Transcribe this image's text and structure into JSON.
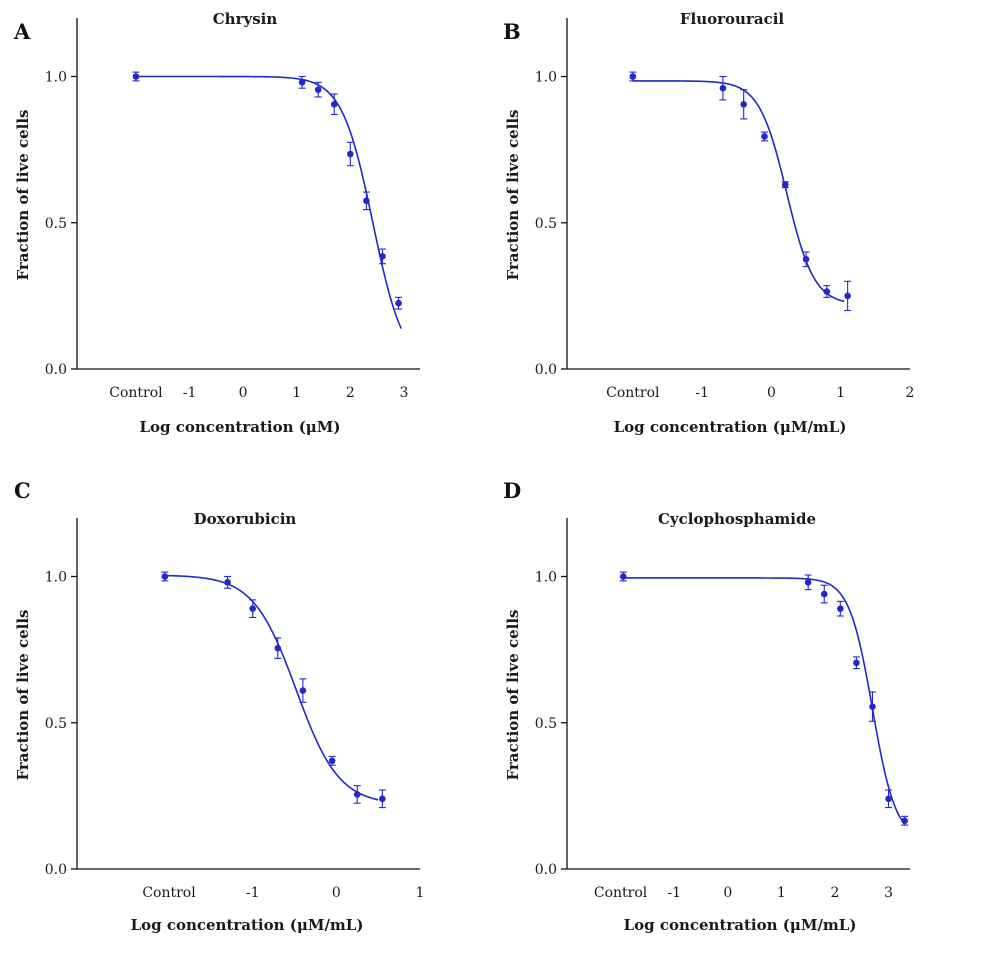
{
  "chart_data": [
    {
      "panel": "A",
      "type": "scatter",
      "title": "Chrysin",
      "xlabel": "Log concentration (μM)",
      "ylabel": "Fraction of live cells",
      "xlim": [
        -3.1,
        3.3
      ],
      "ylim": [
        0,
        1.2
      ],
      "x_ticks": [
        {
          "value": -2,
          "label": "Control"
        },
        {
          "value": -1,
          "label": "-1"
        },
        {
          "value": 0,
          "label": "0"
        },
        {
          "value": 1,
          "label": "1"
        },
        {
          "value": 2,
          "label": "2"
        },
        {
          "value": 3,
          "label": "3"
        }
      ],
      "y_ticks": [
        {
          "value": 0,
          "label": "0.0"
        },
        {
          "value": 0.5,
          "label": "0.5"
        },
        {
          "value": 1,
          "label": "1.0"
        }
      ],
      "fit": {
        "top": 1.0,
        "bottom": 0.0,
        "logIC50": 2.42,
        "hill": 1.5,
        "x_from": -2,
        "x_to": 2.95
      },
      "points": [
        {
          "x": -2,
          "y": 1.0,
          "err": 0.015
        },
        {
          "x": 1.1,
          "y": 0.98,
          "err": 0.02
        },
        {
          "x": 1.4,
          "y": 0.955,
          "err": 0.025
        },
        {
          "x": 1.7,
          "y": 0.905,
          "err": 0.035
        },
        {
          "x": 2.0,
          "y": 0.735,
          "err": 0.04
        },
        {
          "x": 2.3,
          "y": 0.575,
          "err": 0.03
        },
        {
          "x": 2.6,
          "y": 0.385,
          "err": 0.025
        },
        {
          "x": 2.9,
          "y": 0.225,
          "err": 0.02
        }
      ]
    },
    {
      "panel": "B",
      "type": "scatter",
      "title": "Fluorouracil",
      "xlabel": "Log concentration (μM/mL)",
      "ylabel": "Fraction of live cells",
      "xlim": [
        -2.95,
        2.0
      ],
      "ylim": [
        0,
        1.2
      ],
      "x_ticks": [
        {
          "value": -2,
          "label": "Control"
        },
        {
          "value": -1,
          "label": "-1"
        },
        {
          "value": 0,
          "label": "0"
        },
        {
          "value": 1,
          "label": "1"
        },
        {
          "value": 2,
          "label": "2"
        }
      ],
      "y_ticks": [
        {
          "value": 0,
          "label": "0.0"
        },
        {
          "value": 0.5,
          "label": "0.5"
        },
        {
          "value": 1,
          "label": "1.0"
        }
      ],
      "fit": {
        "top": 0.985,
        "bottom": 0.22,
        "logIC50": 0.22,
        "hill": 2.2,
        "x_from": -2,
        "x_to": 1.05
      },
      "points": [
        {
          "x": -2,
          "y": 1.0,
          "err": 0.015
        },
        {
          "x": -0.7,
          "y": 0.96,
          "err": 0.04
        },
        {
          "x": -0.4,
          "y": 0.905,
          "err": 0.05
        },
        {
          "x": -0.1,
          "y": 0.795,
          "err": 0.015
        },
        {
          "x": 0.2,
          "y": 0.63,
          "err": 0.01
        },
        {
          "x": 0.5,
          "y": 0.375,
          "err": 0.025
        },
        {
          "x": 0.8,
          "y": 0.265,
          "err": 0.02
        },
        {
          "x": 1.1,
          "y": 0.25,
          "err": 0.05
        }
      ]
    },
    {
      "panel": "C",
      "type": "scatter",
      "title": "Doxorubicin",
      "xlabel": "Log concentration (μM/mL)",
      "ylabel": "Fraction of live cells",
      "xlim": [
        -3.1,
        1.0
      ],
      "ylim": [
        0,
        1.2
      ],
      "x_ticks": [
        {
          "value": -2,
          "label": "Control"
        },
        {
          "value": -1,
          "label": "-1"
        },
        {
          "value": 0,
          "label": "0"
        },
        {
          "value": 1,
          "label": "1"
        }
      ],
      "y_ticks": [
        {
          "value": 0,
          "label": "0.0"
        },
        {
          "value": 0.5,
          "label": "0.5"
        },
        {
          "value": 1,
          "label": "1.0"
        }
      ],
      "fit": {
        "top": 1.005,
        "bottom": 0.22,
        "logIC50": -0.48,
        "hill": 1.7,
        "x_from": -2.05,
        "x_to": 0.5
      },
      "points": [
        {
          "x": -2.05,
          "y": 1.0,
          "err": 0.015
        },
        {
          "x": -1.3,
          "y": 0.98,
          "err": 0.02
        },
        {
          "x": -1.0,
          "y": 0.89,
          "err": 0.03
        },
        {
          "x": -0.7,
          "y": 0.755,
          "err": 0.035
        },
        {
          "x": -0.4,
          "y": 0.61,
          "err": 0.04
        },
        {
          "x": -0.05,
          "y": 0.37,
          "err": 0.015
        },
        {
          "x": 0.25,
          "y": 0.255,
          "err": 0.03
        },
        {
          "x": 0.55,
          "y": 0.24,
          "err": 0.03
        }
      ]
    },
    {
      "panel": "D",
      "type": "scatter",
      "title": "Cyclophosphamide",
      "xlabel": "Log concentration (μM/mL)",
      "ylabel": "Fraction of live cells",
      "xlim": [
        -3.0,
        3.4
      ],
      "ylim": [
        0,
        1.2
      ],
      "x_ticks": [
        {
          "value": -2,
          "label": "Control"
        },
        {
          "value": -1,
          "label": "-1"
        },
        {
          "value": 0,
          "label": "0"
        },
        {
          "value": 1,
          "label": "1"
        },
        {
          "value": 2,
          "label": "2"
        },
        {
          "value": 3,
          "label": "3"
        }
      ],
      "y_ticks": [
        {
          "value": 0,
          "label": "0.0"
        },
        {
          "value": 0.5,
          "label": "0.5"
        },
        {
          "value": 1,
          "label": "1.0"
        }
      ],
      "fit": {
        "top": 0.995,
        "bottom": 0.1,
        "logIC50": 2.7,
        "hill": 2.0,
        "x_from": -1.95,
        "x_to": 3.3
      },
      "points": [
        {
          "x": -1.95,
          "y": 1.0,
          "err": 0.015
        },
        {
          "x": 1.5,
          "y": 0.98,
          "err": 0.025
        },
        {
          "x": 1.8,
          "y": 0.94,
          "err": 0.03
        },
        {
          "x": 2.1,
          "y": 0.89,
          "err": 0.025
        },
        {
          "x": 2.4,
          "y": 0.705,
          "err": 0.02
        },
        {
          "x": 2.7,
          "y": 0.555,
          "err": 0.05
        },
        {
          "x": 3.0,
          "y": 0.24,
          "err": 0.03
        },
        {
          "x": 3.3,
          "y": 0.165,
          "err": 0.015
        }
      ]
    }
  ],
  "style": {
    "series_color": "#2427c9",
    "axis_color": "#111111"
  }
}
